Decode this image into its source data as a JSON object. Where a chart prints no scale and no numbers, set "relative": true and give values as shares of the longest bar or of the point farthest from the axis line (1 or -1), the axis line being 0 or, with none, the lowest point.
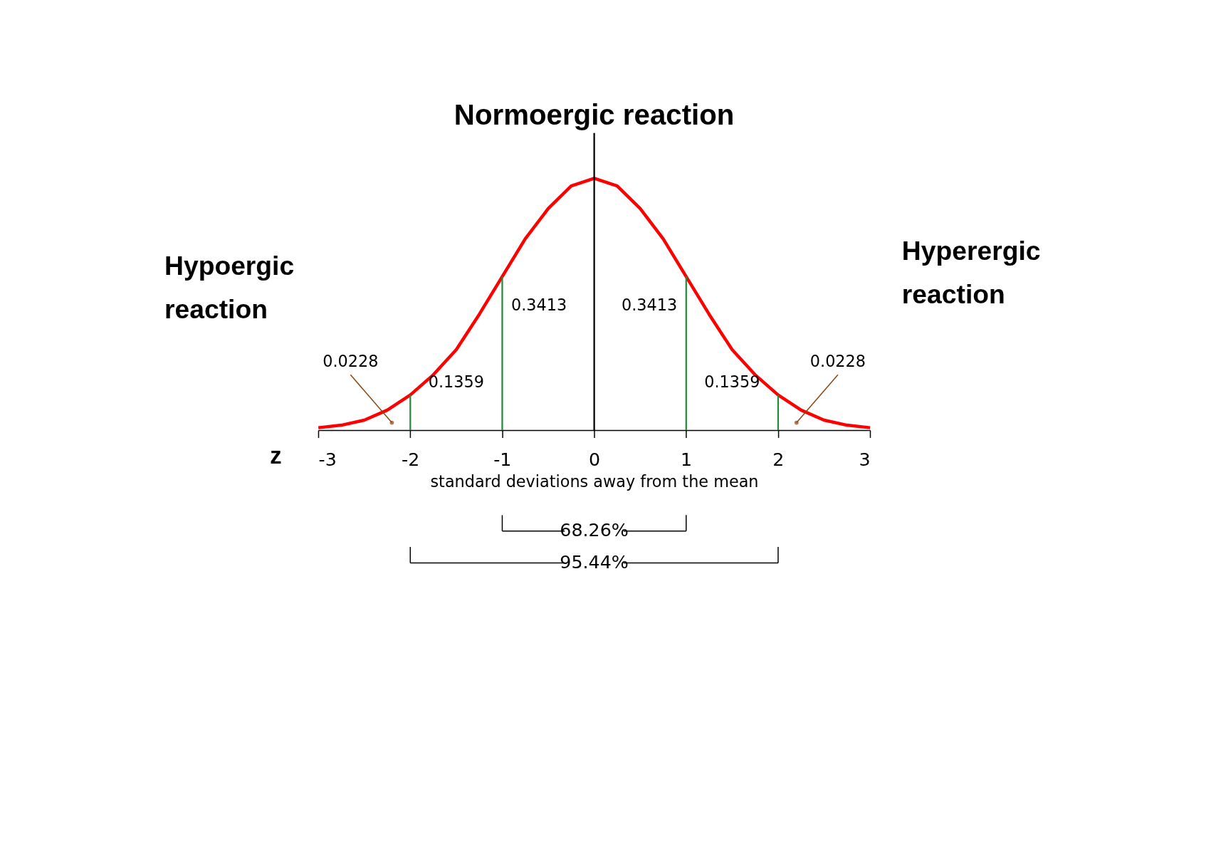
{
  "chart_data": {
    "type": "line",
    "title": "Normoergic reaction",
    "xlabel": "standard deviations away from the mean",
    "relative": true,
    "x": [
      -3,
      -2.75,
      -2.5,
      -2.25,
      -2,
      -1.75,
      -1.5,
      -1.25,
      -1,
      -0.75,
      -0.5,
      -0.25,
      0,
      0.25,
      0.5,
      0.75,
      1,
      1.25,
      1.5,
      1.75,
      2,
      2.25,
      2.5,
      2.75,
      3
    ],
    "series": [
      {
        "color": "#ff0000",
        "values": [
          0.01,
          0.02,
          0.04,
          0.08,
          0.14,
          0.22,
          0.32,
          0.46,
          0.61,
          0.76,
          0.88,
          0.97,
          1.0,
          0.97,
          0.88,
          0.76,
          0.61,
          0.46,
          0.32,
          0.22,
          0.14,
          0.08,
          0.04,
          0.02,
          0.01
        ]
      }
    ],
    "xlim": [
      -3,
      3
    ],
    "xticks": [
      -3,
      -2,
      -1,
      0,
      1,
      2,
      3
    ],
    "grid": false,
    "marker": "none",
    "line_style": "solid",
    "ref_lines": [
      {
        "axis": "x",
        "value": 0,
        "color": "#000000"
      },
      {
        "axis": "x",
        "value": -2,
        "color": "#228b3c"
      },
      {
        "axis": "x",
        "value": -1,
        "color": "#228b3c"
      },
      {
        "axis": "x",
        "value": 1,
        "color": "#228b3c"
      },
      {
        "axis": "x",
        "value": 2,
        "color": "#228b3c"
      }
    ],
    "annotations": [
      "Hypoergic reaction",
      "Hyperergic reaction",
      "0.3413",
      "0.3413",
      "0.1359",
      "0.1359",
      {
        "text": "0.0228",
        "x": -2.2,
        "y": 0.03
      },
      {
        "text": "0.0228",
        "x": 2.2,
        "y": 0.03
      },
      "z",
      "68.26%",
      "95.44%"
    ]
  }
}
